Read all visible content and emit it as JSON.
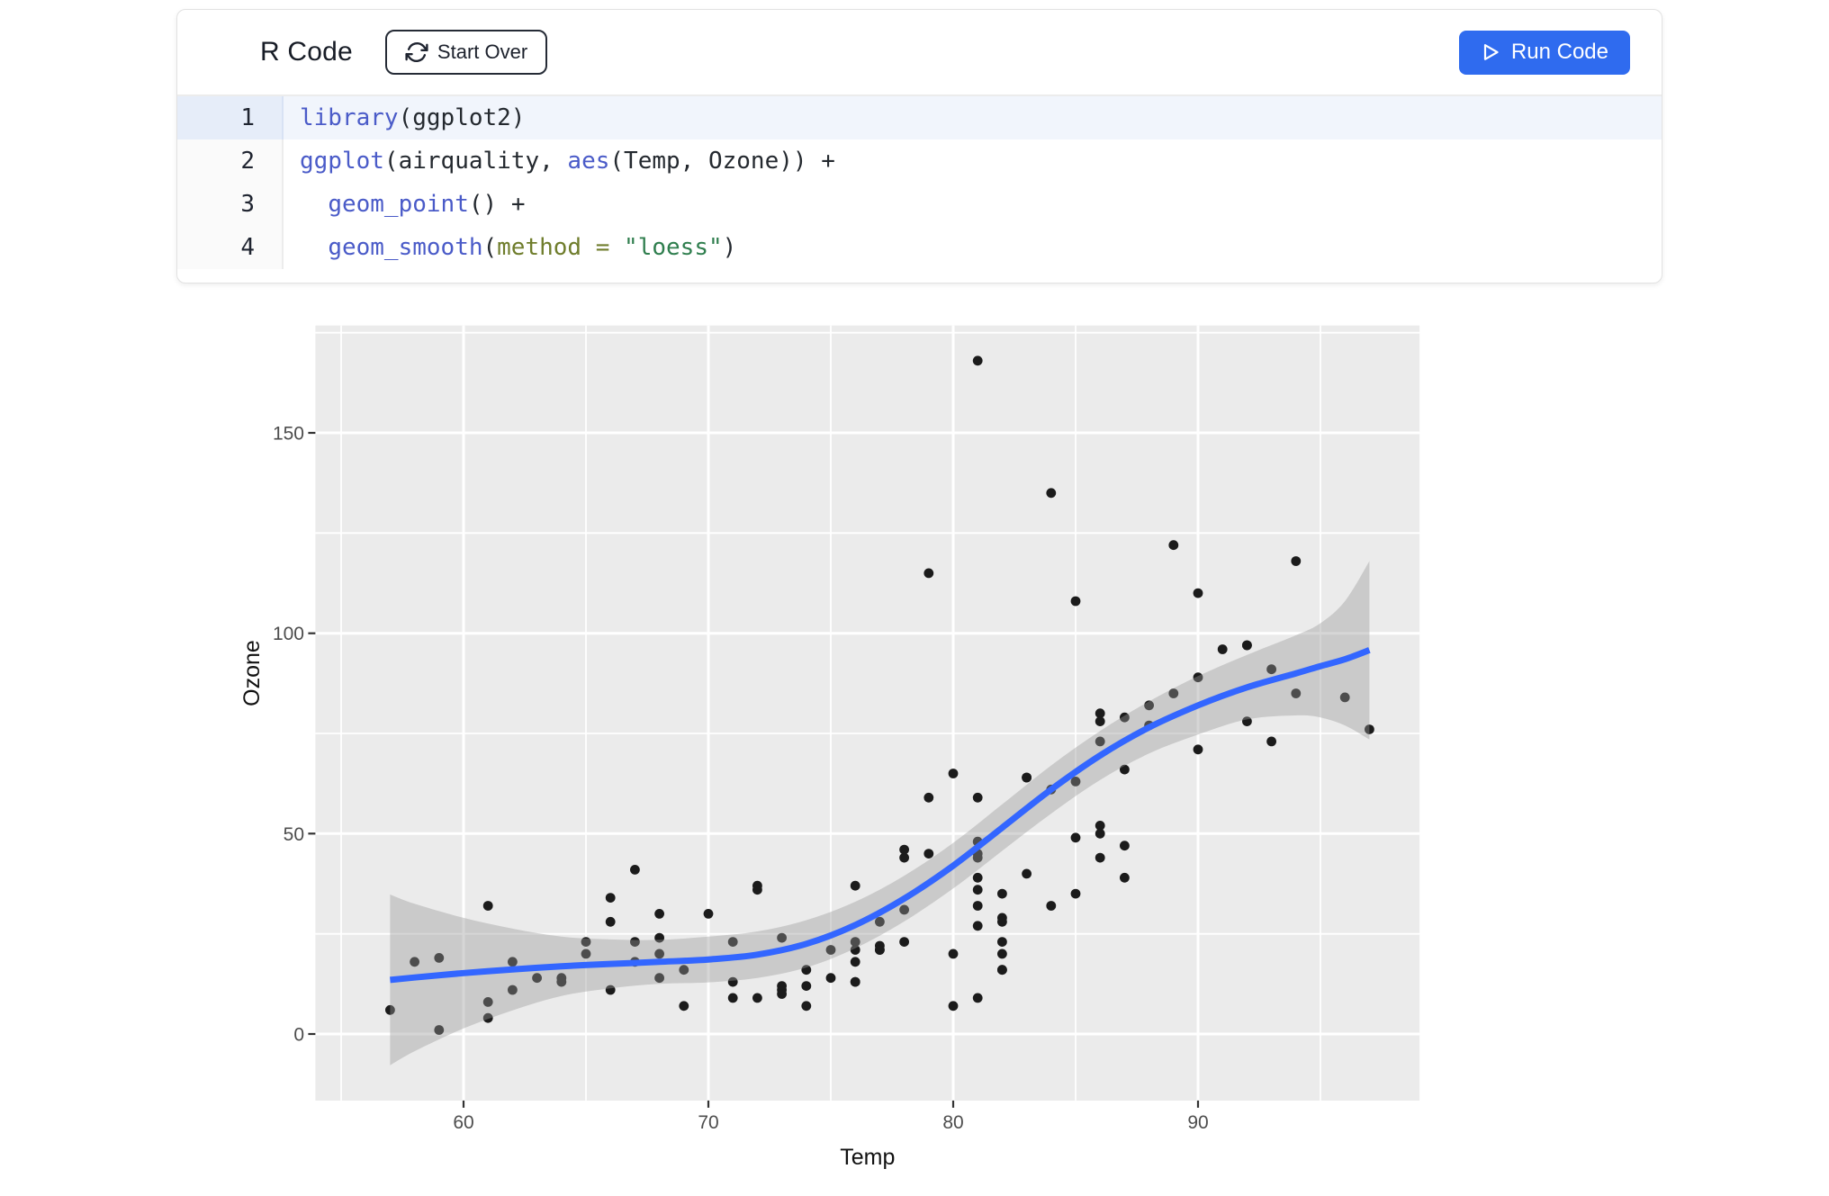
{
  "editor": {
    "title": "R Code",
    "start_over_label": "Start Over",
    "run_code_label": "Run Code",
    "accent_color": "#2f6bef",
    "syntax_colors": {
      "fn": "#4a5bc8",
      "kw": "#6f7d2c",
      "str": "#2f7e4e",
      "plain": "#24292f"
    },
    "lines": [
      {
        "number": "1",
        "active": true,
        "tokens": [
          {
            "t": "library",
            "c": "fn"
          },
          {
            "t": "(ggplot2)",
            "c": "plain"
          }
        ]
      },
      {
        "number": "2",
        "active": false,
        "tokens": [
          {
            "t": "ggplot",
            "c": "fn"
          },
          {
            "t": "(airquality, ",
            "c": "plain"
          },
          {
            "t": "aes",
            "c": "fn"
          },
          {
            "t": "(Temp, Ozone)) +",
            "c": "plain"
          }
        ]
      },
      {
        "number": "3",
        "active": false,
        "tokens": [
          {
            "t": "  ",
            "c": "plain"
          },
          {
            "t": "geom_point",
            "c": "fn"
          },
          {
            "t": "() +",
            "c": "plain"
          }
        ]
      },
      {
        "number": "4",
        "active": false,
        "tokens": [
          {
            "t": "  ",
            "c": "plain"
          },
          {
            "t": "geom_smooth",
            "c": "fn"
          },
          {
            "t": "(",
            "c": "plain"
          },
          {
            "t": "method = ",
            "c": "kw"
          },
          {
            "t": "\"loess\"",
            "c": "str"
          },
          {
            "t": ")",
            "c": "plain"
          }
        ]
      }
    ]
  },
  "chart_data": {
    "type": "scatter",
    "title": "",
    "xlabel": "Temp",
    "ylabel": "Ozone",
    "x_ticks": [
      60,
      70,
      80,
      90
    ],
    "y_ticks": [
      0,
      50,
      100,
      150
    ],
    "x_minor": [
      55,
      65,
      75,
      85,
      95
    ],
    "y_minor": [
      25,
      75,
      125,
      175
    ],
    "xlim": [
      53.95,
      99.05
    ],
    "ylim": [
      -16.6,
      176.8
    ],
    "grid": true,
    "legend": "none",
    "panel_bg": "#ebebeb",
    "grid_color": "#ffffff",
    "point_color": "#1b1b1b",
    "smooth_color": "#3366ff",
    "band_color": "#999999",
    "band_alpha": 0.4,
    "tick_label_color": "#4d4d4d",
    "axis_title_color": "#111111",
    "points": [
      [
        67,
        41
      ],
      [
        72,
        36
      ],
      [
        74,
        12
      ],
      [
        62,
        18
      ],
      [
        66,
        28
      ],
      [
        65,
        23
      ],
      [
        59,
        19
      ],
      [
        61,
        8
      ],
      [
        74,
        7
      ],
      [
        69,
        16
      ],
      [
        66,
        11
      ],
      [
        68,
        14
      ],
      [
        58,
        18
      ],
      [
        64,
        14
      ],
      [
        66,
        34
      ],
      [
        57,
        6
      ],
      [
        68,
        30
      ],
      [
        62,
        11
      ],
      [
        59,
        1
      ],
      [
        73,
        11
      ],
      [
        61,
        4
      ],
      [
        61,
        32
      ],
      [
        67,
        23
      ],
      [
        81,
        45
      ],
      [
        79,
        115
      ],
      [
        76,
        37
      ],
      [
        82,
        29
      ],
      [
        90,
        71
      ],
      [
        87,
        39
      ],
      [
        82,
        23
      ],
      [
        77,
        21
      ],
      [
        72,
        37
      ],
      [
        65,
        20
      ],
      [
        73,
        12
      ],
      [
        76,
        13
      ],
      [
        84,
        135
      ],
      [
        85,
        49
      ],
      [
        81,
        32
      ],
      [
        83,
        64
      ],
      [
        83,
        40
      ],
      [
        88,
        77
      ],
      [
        92,
        97
      ],
      [
        92,
        97
      ],
      [
        89,
        85
      ],
      [
        73,
        10
      ],
      [
        81,
        27
      ],
      [
        80,
        7
      ],
      [
        81,
        48
      ],
      [
        82,
        35
      ],
      [
        84,
        61
      ],
      [
        87,
        79
      ],
      [
        85,
        63
      ],
      [
        74,
        16
      ],
      [
        86,
        80
      ],
      [
        85,
        108
      ],
      [
        82,
        20
      ],
      [
        86,
        52
      ],
      [
        88,
        82
      ],
      [
        86,
        50
      ],
      [
        83,
        64
      ],
      [
        81,
        59
      ],
      [
        81,
        39
      ],
      [
        81,
        9
      ],
      [
        82,
        16
      ],
      [
        86,
        78
      ],
      [
        85,
        35
      ],
      [
        87,
        66
      ],
      [
        89,
        122
      ],
      [
        90,
        89
      ],
      [
        90,
        110
      ],
      [
        86,
        44
      ],
      [
        82,
        28
      ],
      [
        80,
        65
      ],
      [
        77,
        22
      ],
      [
        79,
        59
      ],
      [
        76,
        23
      ],
      [
        78,
        31
      ],
      [
        78,
        44
      ],
      [
        77,
        21
      ],
      [
        72,
        9
      ],
      [
        79,
        45
      ],
      [
        81,
        168
      ],
      [
        86,
        73
      ],
      [
        97,
        76
      ],
      [
        94,
        118
      ],
      [
        96,
        84
      ],
      [
        94,
        85
      ],
      [
        91,
        96
      ],
      [
        92,
        78
      ],
      [
        93,
        73
      ],
      [
        93,
        91
      ],
      [
        87,
        47
      ],
      [
        84,
        32
      ],
      [
        80,
        20
      ],
      [
        78,
        23
      ],
      [
        75,
        21
      ],
      [
        73,
        24
      ],
      [
        81,
        44
      ],
      [
        76,
        21
      ],
      [
        77,
        28
      ],
      [
        71,
        9
      ],
      [
        71,
        13
      ],
      [
        78,
        46
      ],
      [
        67,
        18
      ],
      [
        76,
        13
      ],
      [
        68,
        24
      ],
      [
        82,
        16
      ],
      [
        64,
        13
      ],
      [
        71,
        23
      ],
      [
        81,
        36
      ],
      [
        69,
        7
      ],
      [
        63,
        14
      ],
      [
        70,
        30
      ],
      [
        75,
        14
      ],
      [
        76,
        18
      ],
      [
        68,
        20
      ]
    ],
    "smooth": {
      "x": [
        57,
        58,
        60,
        62,
        64,
        66,
        68,
        70,
        72,
        74,
        76,
        78,
        80,
        82,
        84,
        86,
        88,
        90,
        92,
        94,
        95,
        96,
        97
      ],
      "fit": [
        13.5,
        14.1,
        15.2,
        16.1,
        16.9,
        17.5,
        18.0,
        18.6,
        19.8,
        22.5,
        27.2,
        33.8,
        42.0,
        51.5,
        61.0,
        69.5,
        76.5,
        82.0,
        86.5,
        90.0,
        91.8,
        93.5,
        95.8
      ],
      "upper": [
        34.8,
        32.5,
        29.0,
        26.3,
        24.3,
        23.6,
        23.5,
        24.3,
        25.6,
        28.4,
        33.0,
        39.5,
        47.7,
        57.3,
        67.0,
        75.6,
        83.0,
        89.3,
        94.6,
        99.5,
        102.5,
        108.0,
        118.0
      ],
      "lower": [
        -7.8,
        -4.3,
        1.4,
        5.9,
        9.5,
        11.4,
        12.5,
        12.9,
        14.0,
        16.6,
        21.4,
        28.1,
        36.3,
        45.7,
        55.0,
        63.4,
        70.0,
        74.7,
        78.5,
        79.5,
        79.0,
        77.0,
        73.5
      ]
    }
  }
}
